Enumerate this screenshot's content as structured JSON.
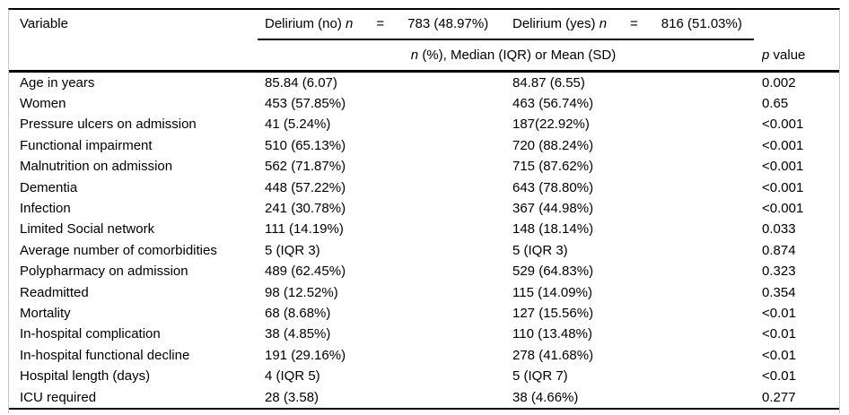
{
  "table": {
    "header": {
      "variable_label": "Variable",
      "group_no": {
        "label": "Delirium (no)",
        "n_symbol": "n",
        "equals": "=",
        "count": "783 (48.97%)"
      },
      "group_yes": {
        "label": "Delirium (yes)",
        "n_symbol": "n",
        "equals": "=",
        "count": "816 (51.03%)"
      },
      "subheader": {
        "n_symbol": "n",
        "rest": "(%), Median (IQR) or Mean (SD)"
      },
      "p_header": {
        "p_symbol": "p",
        "rest": "value"
      }
    },
    "rows": [
      {
        "variable": "Age in years",
        "no": "85.84 (6.07)",
        "yes": "84.87 (6.55)",
        "p": "0.002"
      },
      {
        "variable": "Women",
        "no": "453 (57.85%)",
        "yes": "463 (56.74%)",
        "p": "0.65"
      },
      {
        "variable": "Pressure ulcers on admission",
        "no": "41 (5.24%)",
        "yes": "187(22.92%)",
        "p": "<0.001"
      },
      {
        "variable": "Functional impairment",
        "no": "510 (65.13%)",
        "yes": "720 (88.24%)",
        "p": "<0.001"
      },
      {
        "variable": "Malnutrition on admission",
        "no": "562 (71.87%)",
        "yes": "715 (87.62%)",
        "p": "<0.001"
      },
      {
        "variable": "Dementia",
        "no": "448 (57.22%)",
        "yes": "643 (78.80%)",
        "p": "<0.001"
      },
      {
        "variable": "Infection",
        "no": "241 (30.78%)",
        "yes": "367 (44.98%)",
        "p": "<0.001"
      },
      {
        "variable": "Limited Social network",
        "no": "111 (14.19%)",
        "yes": "148 (18.14%)",
        "p": "0.033"
      },
      {
        "variable": "Average number of comorbidities",
        "no": "5 (IQR 3)",
        "yes": "5 (IQR 3)",
        "p": "0.874"
      },
      {
        "variable": "Polypharmacy on admission",
        "no": "489 (62.45%)",
        "yes": "529 (64.83%)",
        "p": "0.323"
      },
      {
        "variable": "Readmitted",
        "no": "98 (12.52%)",
        "yes": "115 (14.09%)",
        "p": "0.354"
      },
      {
        "variable": "Mortality",
        "no": "68 (8.68%)",
        "yes": "127 (15.56%)",
        "p": "<0.01"
      },
      {
        "variable": "In-hospital complication",
        "no": "38 (4.85%)",
        "yes": "110 (13.48%)",
        "p": "<0.01"
      },
      {
        "variable": "In-hospital functional decline",
        "no": "191 (29.16%)",
        "yes": "278 (41.68%)",
        "p": "<0.01"
      },
      {
        "variable": "Hospital length (days)",
        "no": "4 (IQR 5)",
        "yes": "5 (IQR 7)",
        "p": "<0.01"
      },
      {
        "variable": "ICU required",
        "no": "28 (3.58)",
        "yes": "38 (4.66%)",
        "p": "0.277"
      }
    ]
  },
  "colors": {
    "rule": "#000000",
    "side_border": "#c9c9c9",
    "text": "#000000",
    "background": "#ffffff"
  }
}
